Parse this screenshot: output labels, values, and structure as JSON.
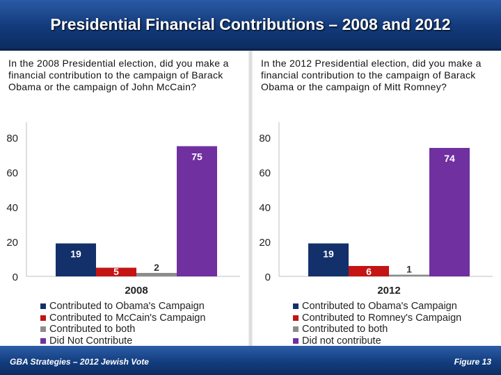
{
  "header": {
    "title": "Presidential Financial Contributions – 2008 and 2012"
  },
  "footer": {
    "left": "GBA Strategies – 2012 Jewish Vote",
    "right": "Figure 13"
  },
  "chart_data": [
    {
      "type": "bar",
      "question": "In the 2008 Presidential election, did you make a financial contribution to the campaign of Barack Obama or the campaign of John McCain?",
      "categories": [
        "2008"
      ],
      "series": [
        {
          "name": "Contributed to Obama's Campaign",
          "values": [
            19
          ],
          "color": "#13306b"
        },
        {
          "name": "Contributed to McCain's Campaign",
          "values": [
            5
          ],
          "color": "#c41414"
        },
        {
          "name": "Contributed to both",
          "values": [
            2
          ],
          "color": "#8c8c8c"
        },
        {
          "name": "Did Not Contribute",
          "values": [
            75
          ],
          "color": "#7030a0"
        }
      ],
      "ylim": [
        0,
        80
      ],
      "yticks": [
        0,
        20,
        40,
        60,
        80
      ],
      "grid": false,
      "legend_position": "bottom"
    },
    {
      "type": "bar",
      "question": "In the 2012 Presidential election, did you make a financial contribution to the campaign of Barack Obama or the campaign of Mitt Romney?",
      "categories": [
        "2012"
      ],
      "series": [
        {
          "name": "Contributed to Obama's Campaign",
          "values": [
            19
          ],
          "color": "#13306b"
        },
        {
          "name": "Contributed to Romney's Campaign",
          "values": [
            6
          ],
          "color": "#c41414"
        },
        {
          "name": "Contributed to both",
          "values": [
            1
          ],
          "color": "#8c8c8c"
        },
        {
          "name": "Did not contribute",
          "values": [
            74
          ],
          "color": "#7030a0"
        }
      ],
      "ylim": [
        0,
        80
      ],
      "yticks": [
        0,
        20,
        40,
        60,
        80
      ],
      "grid": false,
      "legend_position": "bottom"
    }
  ]
}
